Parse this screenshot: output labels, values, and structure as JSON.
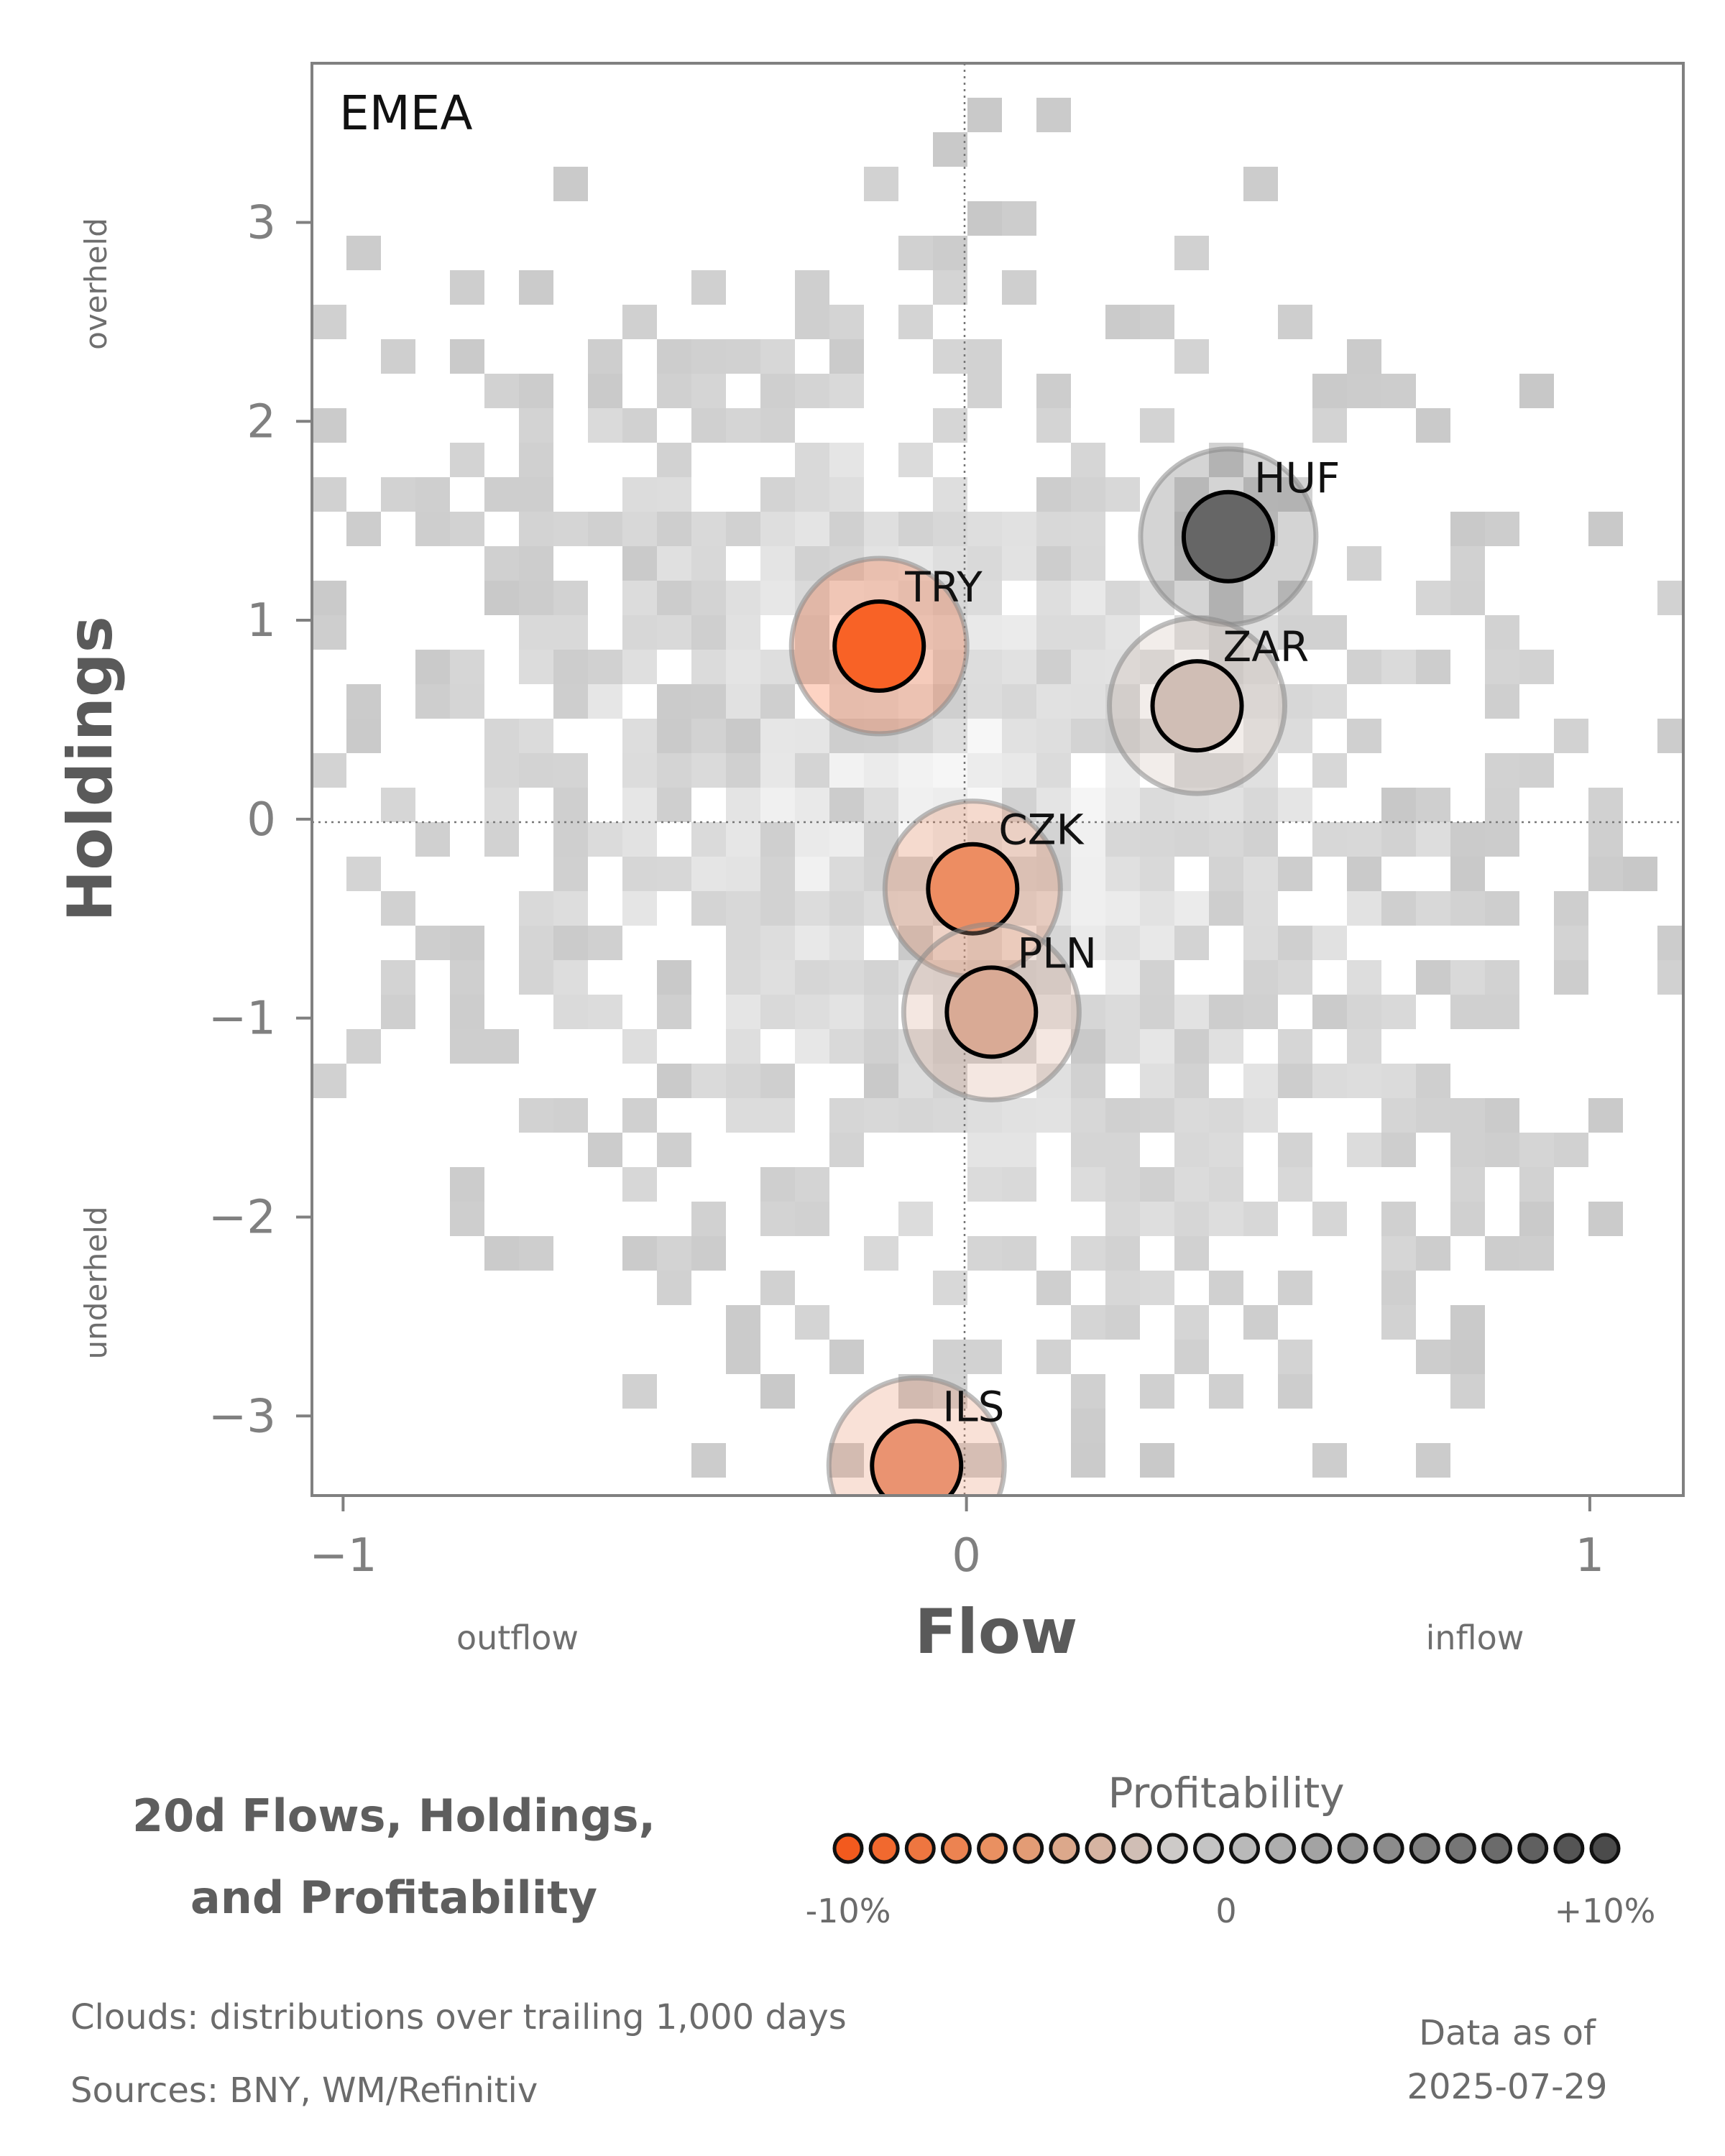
{
  "chart_data": {
    "type": "scatter",
    "panel_label": "EMEA",
    "xlabel": "Flow",
    "ylabel": "Holdings",
    "x_side_labels": {
      "left": "outflow",
      "right": "inflow"
    },
    "y_side_labels": {
      "top": "overheld",
      "bottom": "underheld"
    },
    "xlim": [
      -1.05,
      1.15
    ],
    "ylim": [
      -3.4,
      3.8
    ],
    "xticks": [
      -1,
      0,
      1
    ],
    "xtick_labels": [
      "−1",
      "0",
      "1"
    ],
    "yticks": [
      3,
      2,
      1,
      0,
      -1,
      -2,
      -3
    ],
    "ytick_labels": [
      "3",
      "2",
      "1",
      "0",
      "−1",
      "−2",
      "−3"
    ],
    "reference_lines": {
      "x": 0,
      "y": 0,
      "style": "dotted"
    },
    "background": "distributions over trailing 1,000 days (grey density clouds)",
    "points": [
      {
        "label": "HUF",
        "x": 0.42,
        "y": 1.42,
        "profitability": 10,
        "color": "#666666"
      },
      {
        "label": "TRY",
        "x": -0.14,
        "y": 0.87,
        "profitability": -10,
        "color": "#f86226"
      },
      {
        "label": "ZAR",
        "x": 0.37,
        "y": 0.57,
        "profitability": 0,
        "color": "#d0beb5"
      },
      {
        "label": "CZK",
        "x": 0.01,
        "y": -0.35,
        "profitability": -6,
        "color": "#ed8d62"
      },
      {
        "label": "PLN",
        "x": 0.04,
        "y": -0.97,
        "profitability": -3,
        "color": "#d9aa95"
      },
      {
        "label": "ILS",
        "x": -0.08,
        "y": -3.25,
        "profitability": -6,
        "color": "#ea9371"
      }
    ]
  },
  "legend": {
    "title": "Profitability",
    "min_label": "-10%",
    "mid_label": "0",
    "max_label": "+10%",
    "colors": [
      "#f35a1e",
      "#f1692f",
      "#ee7640",
      "#ec8351",
      "#e99061",
      "#e39c75",
      "#dca88b",
      "#d6b4a2",
      "#d0beb5",
      "#cdcac8",
      "#c4c4c4",
      "#b9b9b9",
      "#aeaeae",
      "#a3a3a3",
      "#989898",
      "#8c8c8c",
      "#818181",
      "#767676",
      "#6b6b6b",
      "#606060",
      "#555555",
      "#4b4b4b"
    ]
  },
  "title": {
    "line1": "20d Flows, Holdings,",
    "line2": "and Profitability"
  },
  "footer": {
    "clouds_note": "Clouds:  distributions over trailing 1,000 days",
    "sources": "Sources:  BNY, WM/Refinitiv",
    "data_as_of_label": "Data as of",
    "data_as_of_date": "2025-07-29"
  }
}
